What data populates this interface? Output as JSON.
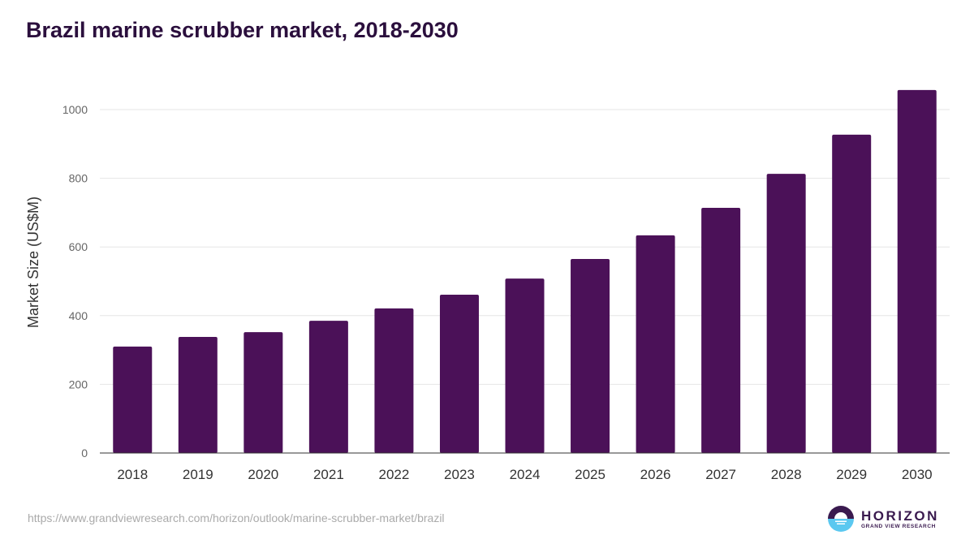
{
  "title": "Brazil marine scrubber market, 2018-2030",
  "source": "https://www.grandviewresearch.com/horizon/outlook/marine-scrubber-market/brazil",
  "logo": {
    "name": "HORIZON",
    "sub": "GRAND VIEW RESEARCH"
  },
  "colors": {
    "bar": "#4b1158",
    "title": "#2b0f3d"
  },
  "chart_data": {
    "type": "bar",
    "title": "Brazil marine scrubber market, 2018-2030",
    "xlabel": "",
    "ylabel": "Market Size (US$M)",
    "categories": [
      "2018",
      "2019",
      "2020",
      "2021",
      "2022",
      "2023",
      "2024",
      "2025",
      "2026",
      "2027",
      "2028",
      "2029",
      "2030"
    ],
    "values": [
      310,
      338,
      352,
      385,
      421,
      461,
      508,
      565,
      634,
      714,
      813,
      927,
      1057
    ],
    "ylim": [
      0,
      1100
    ],
    "yticks": [
      0,
      200,
      400,
      600,
      800,
      1000
    ],
    "grid": true
  }
}
